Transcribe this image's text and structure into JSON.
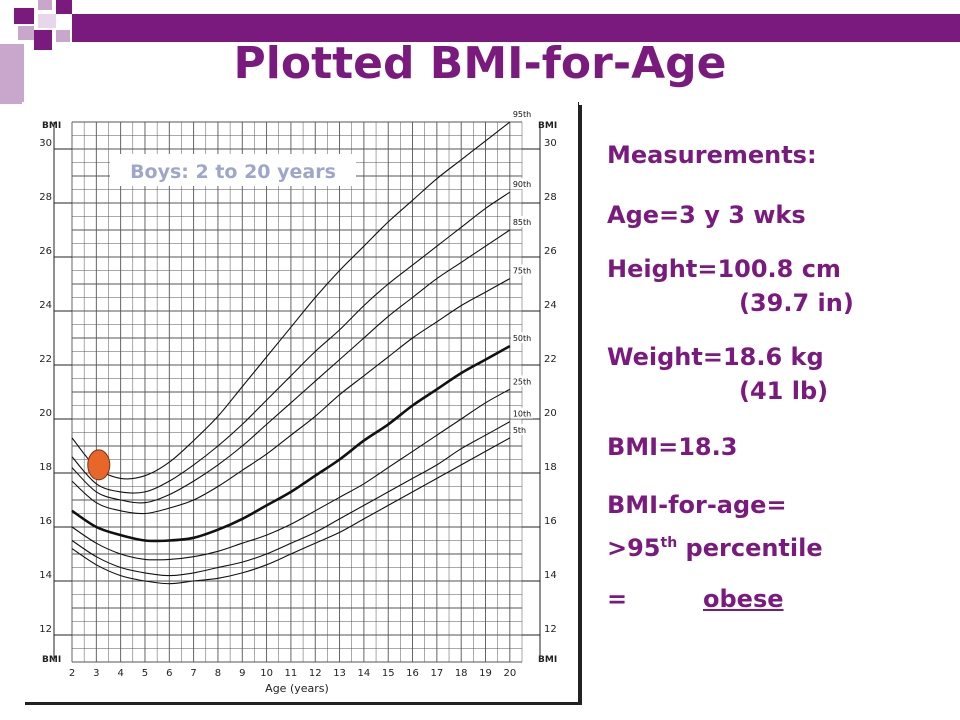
{
  "slide": {
    "title": "Plotted BMI-for-Age",
    "accent_color": "#7a1a7e"
  },
  "measurements": {
    "heading": "Measurements:",
    "age": "Age=3 y 3 wks",
    "height_1": "Height=100.8 cm",
    "height_2": "(39.7 in)",
    "weight_1": "Weight=18.6 kg",
    "weight_2": "(41 lb)",
    "bmi": "BMI=18.3",
    "bfa_1": "BMI-for-age=",
    "bfa_2_prefix": ">95",
    "bfa_2_sup": "th",
    "bfa_2_suffix": " percentile",
    "result_eq": "=",
    "result_word": "obese"
  },
  "chart_data": {
    "type": "line",
    "title": "Boys: 2 to 20 years",
    "xlabel": "Age (years)",
    "ylabel": "BMI",
    "xlim": [
      2,
      20.5
    ],
    "ylim": [
      11,
      31
    ],
    "x_ticks": [
      2,
      3,
      4,
      5,
      6,
      7,
      8,
      9,
      10,
      11,
      12,
      13,
      14,
      15,
      16,
      17,
      18,
      19,
      20
    ],
    "y_ticks": [
      12,
      14,
      16,
      18,
      20,
      22,
      24,
      26,
      28,
      30
    ],
    "axis_tag_label": "BMI",
    "grid": true,
    "x": [
      2,
      3,
      4,
      5,
      6,
      7,
      8,
      9,
      10,
      11,
      12,
      13,
      14,
      15,
      16,
      17,
      18,
      19,
      20
    ],
    "series": [
      {
        "name": "95th",
        "bold": false,
        "values": [
          19.3,
          18.2,
          17.8,
          17.9,
          18.4,
          19.2,
          20.1,
          21.2,
          22.3,
          23.4,
          24.5,
          25.5,
          26.4,
          27.3,
          28.1,
          28.9,
          29.6,
          30.3,
          31.0
        ]
      },
      {
        "name": "90th",
        "bold": false,
        "values": [
          18.6,
          17.6,
          17.3,
          17.3,
          17.7,
          18.3,
          19.0,
          19.8,
          20.7,
          21.6,
          22.5,
          23.3,
          24.2,
          25.0,
          25.7,
          26.4,
          27.1,
          27.8,
          28.4
        ]
      },
      {
        "name": "85th",
        "bold": false,
        "values": [
          18.2,
          17.3,
          17.0,
          16.9,
          17.2,
          17.7,
          18.3,
          19.0,
          19.8,
          20.6,
          21.4,
          22.2,
          23.0,
          23.8,
          24.5,
          25.2,
          25.8,
          26.4,
          27.0
        ]
      },
      {
        "name": "75th",
        "bold": false,
        "values": [
          17.7,
          16.9,
          16.6,
          16.5,
          16.7,
          17.0,
          17.5,
          18.1,
          18.7,
          19.4,
          20.1,
          20.9,
          21.6,
          22.3,
          23.0,
          23.6,
          24.2,
          24.7,
          25.2
        ]
      },
      {
        "name": "50th",
        "bold": true,
        "values": [
          16.6,
          16.0,
          15.7,
          15.5,
          15.5,
          15.6,
          15.9,
          16.3,
          16.8,
          17.3,
          17.9,
          18.5,
          19.2,
          19.8,
          20.5,
          21.1,
          21.7,
          22.2,
          22.7
        ]
      },
      {
        "name": "25th",
        "bold": false,
        "values": [
          16.0,
          15.4,
          15.0,
          14.8,
          14.8,
          14.9,
          15.1,
          15.4,
          15.7,
          16.1,
          16.6,
          17.1,
          17.6,
          18.2,
          18.8,
          19.4,
          20.0,
          20.6,
          21.1
        ]
      },
      {
        "name": "10th",
        "bold": false,
        "values": [
          15.5,
          14.9,
          14.5,
          14.3,
          14.2,
          14.3,
          14.5,
          14.7,
          15.0,
          15.4,
          15.8,
          16.3,
          16.8,
          17.3,
          17.8,
          18.3,
          18.9,
          19.4,
          19.9
        ]
      },
      {
        "name": "5th",
        "bold": false,
        "values": [
          15.2,
          14.6,
          14.2,
          14.0,
          13.9,
          14.0,
          14.1,
          14.3,
          14.6,
          15.0,
          15.4,
          15.8,
          16.3,
          16.8,
          17.3,
          17.8,
          18.3,
          18.8,
          19.3
        ]
      }
    ],
    "plotted_point": {
      "age": 3.1,
      "bmi": 18.3,
      "color": "#e8662a"
    }
  }
}
